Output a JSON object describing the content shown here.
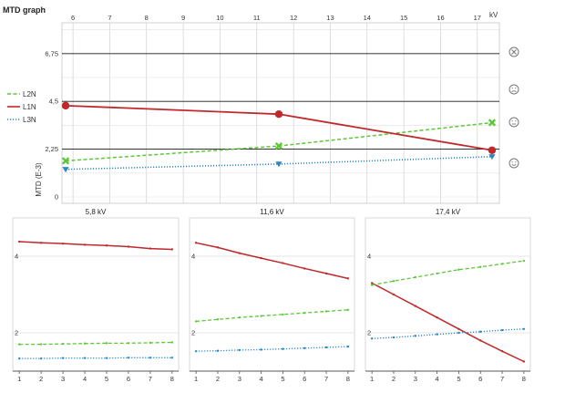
{
  "title": "MTD graph",
  "colors": {
    "L1N": "#c0282c",
    "L2N": "#5cc838",
    "L3N": "#2a87c4",
    "grid": "#c8c8c8",
    "limit": "#1a1a1a"
  },
  "status_icons": [
    "circle-x-icon",
    "sad-face-icon",
    "neutral-face-icon",
    "smile-face-icon"
  ],
  "chart_data": [
    {
      "type": "line",
      "title": "MTD graph",
      "xlabel": "kV",
      "ylabel": "MTD (E-3)",
      "xlim": [
        5.7,
        17.6
      ],
      "ylim": [
        -0.3,
        8.2
      ],
      "x_ticks": [
        6,
        7,
        8,
        9,
        10,
        11,
        12,
        13,
        14,
        15,
        16,
        17
      ],
      "x_tick_labels": [
        "6",
        "7",
        "8",
        "9",
        "10",
        "11",
        "12",
        "13",
        "14",
        "15",
        "16",
        "17"
      ],
      "y_ticks": [
        0,
        2.25,
        4.5,
        6.75
      ],
      "y_tick_labels": [
        "0",
        "2,25",
        "4,5",
        "6,75"
      ],
      "limit_lines": [
        2.25,
        4.5,
        6.75
      ],
      "grid": true,
      "legend": "left",
      "series": [
        {
          "name": "L2N",
          "style": "dashed",
          "marker": "x",
          "x": [
            5.8,
            11.6,
            17.4
          ],
          "y": [
            1.7,
            2.4,
            3.5
          ]
        },
        {
          "name": "L1N",
          "style": "solid",
          "marker": "circle",
          "x": [
            5.8,
            11.6,
            17.4
          ],
          "y": [
            4.3,
            3.9,
            2.2
          ]
        },
        {
          "name": "L3N",
          "style": "dotted",
          "marker": "triangle",
          "x": [
            5.8,
            11.6,
            17.4
          ],
          "y": [
            1.3,
            1.55,
            1.9
          ]
        }
      ]
    },
    {
      "type": "line",
      "title": "5,8 kV",
      "x": [
        1,
        2,
        3,
        4,
        5,
        6,
        7,
        8
      ],
      "xlim": [
        0.7,
        8.3
      ],
      "ylim": [
        1.0,
        5.0
      ],
      "y_ticks": [
        2,
        4
      ],
      "series": [
        {
          "name": "L1N",
          "values": [
            4.38,
            4.35,
            4.33,
            4.3,
            4.28,
            4.25,
            4.2,
            4.18
          ]
        },
        {
          "name": "L2N",
          "values": [
            1.7,
            1.7,
            1.71,
            1.72,
            1.73,
            1.73,
            1.74,
            1.75
          ]
        },
        {
          "name": "L3N",
          "values": [
            1.33,
            1.33,
            1.34,
            1.34,
            1.34,
            1.35,
            1.35,
            1.35
          ]
        }
      ]
    },
    {
      "type": "line",
      "title": "11,6 kV",
      "x": [
        1,
        2,
        3,
        4,
        5,
        6,
        7,
        8
      ],
      "xlim": [
        0.7,
        8.3
      ],
      "ylim": [
        1.0,
        5.0
      ],
      "y_ticks": [
        2,
        4
      ],
      "series": [
        {
          "name": "L1N",
          "values": [
            4.35,
            4.23,
            4.08,
            3.95,
            3.82,
            3.68,
            3.55,
            3.42
          ]
        },
        {
          "name": "L2N",
          "values": [
            2.3,
            2.35,
            2.4,
            2.44,
            2.48,
            2.52,
            2.56,
            2.6
          ]
        },
        {
          "name": "L3N",
          "values": [
            1.52,
            1.53,
            1.55,
            1.56,
            1.58,
            1.6,
            1.62,
            1.64
          ]
        }
      ]
    },
    {
      "type": "line",
      "title": "17,4 kV",
      "x": [
        1,
        2,
        3,
        4,
        5,
        6,
        7,
        8
      ],
      "xlim": [
        0.7,
        8.3
      ],
      "ylim": [
        1.0,
        5.0
      ],
      "y_ticks": [
        2,
        4
      ],
      "series": [
        {
          "name": "L1N",
          "values": [
            3.3,
            3.0,
            2.7,
            2.4,
            2.1,
            1.8,
            1.52,
            1.25
          ]
        },
        {
          "name": "L2N",
          "values": [
            3.25,
            3.35,
            3.45,
            3.55,
            3.65,
            3.72,
            3.8,
            3.88
          ]
        },
        {
          "name": "L3N",
          "values": [
            1.85,
            1.88,
            1.92,
            1.96,
            2.0,
            2.03,
            2.07,
            2.1
          ]
        }
      ]
    }
  ]
}
